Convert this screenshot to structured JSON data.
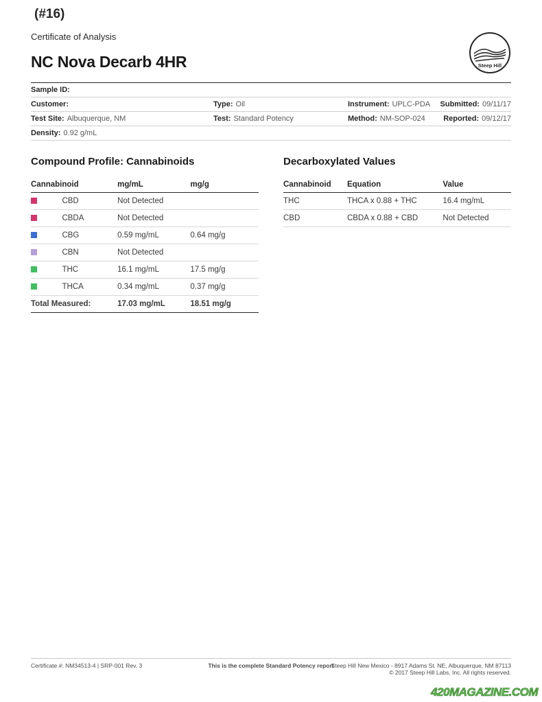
{
  "page_number": "(#16)",
  "cert_title": "Certificate of Analysis",
  "main_title": "NC Nova Decarb 4HR",
  "logo": {
    "brand": "Steep Hill",
    "stroke": "#262626"
  },
  "meta": {
    "rows": [
      [
        {
          "label": "Sample ID:",
          "value": "",
          "width": "100%"
        }
      ],
      [
        {
          "label": "Customer:",
          "value": "",
          "width": "38%"
        },
        {
          "label": "Type:",
          "value": "Oil",
          "width": "28%"
        },
        {
          "label": "Instrument:",
          "value": "UPLC-PDA",
          "width": "22%"
        },
        {
          "label": "Submitted:",
          "value": "09/11/17",
          "width": "12%",
          "align": "right"
        }
      ],
      [
        {
          "label": "Test Site:",
          "value": "Albuquerque, NM",
          "width": "38%"
        },
        {
          "label": "Test:",
          "value": "Standard Potency",
          "width": "28%"
        },
        {
          "label": "Method:",
          "value": "NM-SOP-024",
          "width": "22%"
        },
        {
          "label": "Reported:",
          "value": "09/12/17",
          "width": "12%",
          "align": "right"
        }
      ],
      [
        {
          "label": "Density:",
          "value": "0.92 g/mL",
          "width": "100%"
        }
      ]
    ]
  },
  "compound": {
    "title": "Compound Profile: Cannabinoids",
    "headers": [
      "Cannabinoid",
      "mg/mL",
      "mg/g"
    ],
    "rows": [
      {
        "swatch": "#d6336c",
        "name": "CBD",
        "mgml": "Not Detected",
        "mgg": "",
        "nd": true
      },
      {
        "swatch": "#d6336c",
        "name": "CBDA",
        "mgml": "Not Detected",
        "mgg": "",
        "nd": true
      },
      {
        "swatch": "#3a6fd8",
        "name": "CBG",
        "mgml": "0.59 mg/mL",
        "mgg": "0.64 mg/g"
      },
      {
        "swatch": "#b79fd9",
        "name": "CBN",
        "mgml": "Not Detected",
        "mgg": "",
        "nd": true
      },
      {
        "swatch": "#3fbf5f",
        "name": "THC",
        "mgml": "16.1 mg/mL",
        "mgg": "17.5 mg/g"
      },
      {
        "swatch": "#3fbf5f",
        "name": "THCA",
        "mgml": "0.34 mg/mL",
        "mgg": "0.37 mg/g"
      }
    ],
    "total": {
      "label": "Total Measured:",
      "mgml": "17.03 mg/mL",
      "mgg": "18.51 mg/g"
    }
  },
  "decarb": {
    "title": "Decarboxylated Values",
    "headers": [
      "Cannabinoid",
      "Equation",
      "Value"
    ],
    "rows": [
      {
        "name": "THC",
        "eq": "THCA x 0.88 + THC",
        "val": "16.4 mg/mL"
      },
      {
        "name": "CBD",
        "eq": "CBDA x 0.88 + CBD",
        "val": "Not Detected",
        "nd": true
      }
    ]
  },
  "footer": {
    "left": "Certificate #: NM34513-4 | SRP-001 Rev. 3",
    "center": "This is the complete Standard Potency report",
    "right1": "Steep Hill New Mexico - 8917 Adams St. NE, Albuquerque, NM 87113",
    "right2": "© 2017 Steep Hill Labs, Inc. All rights reserved."
  },
  "watermark": "420MAGAZINE.COM"
}
